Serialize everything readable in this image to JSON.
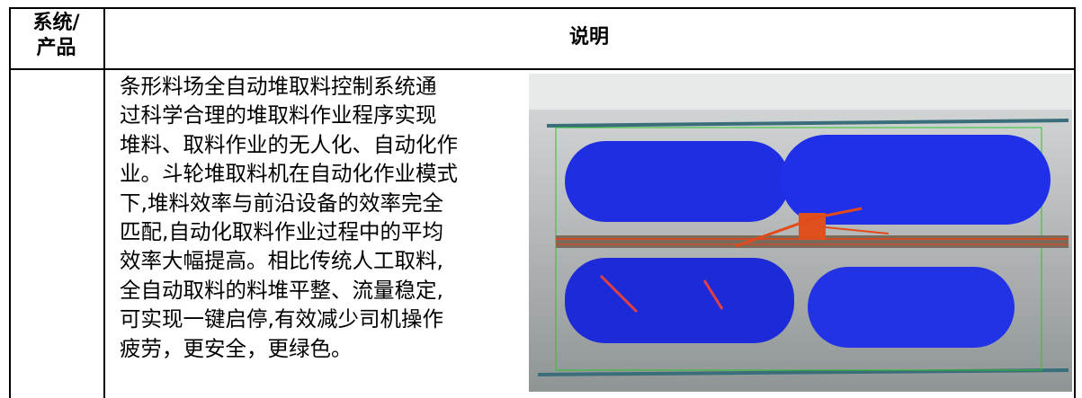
{
  "table": {
    "header": [
      [
        "系统/",
        "产品"
      ],
      "说明"
    ],
    "rows": [
      [
        "",
        [
          "条形料场全自动堆取料控制系统通",
          "过科学合理的堆取料作业程序实现",
          "堆料、取料作业的无人化、自动化作",
          "业。斗轮堆取料机在自动化作业模式",
          "下,堆料效率与前沿设备的效率完全",
          "匹配,自动化取料作业过程中的平均",
          "效率大幅提高。相比传统人工取料,",
          "全自动取料的料堆平整、流量稳定,",
          "可实现一键启停,有效减少司机操作",
          "疲劳，更安全，更绿色。"
        ]
      ]
    ]
  }
}
